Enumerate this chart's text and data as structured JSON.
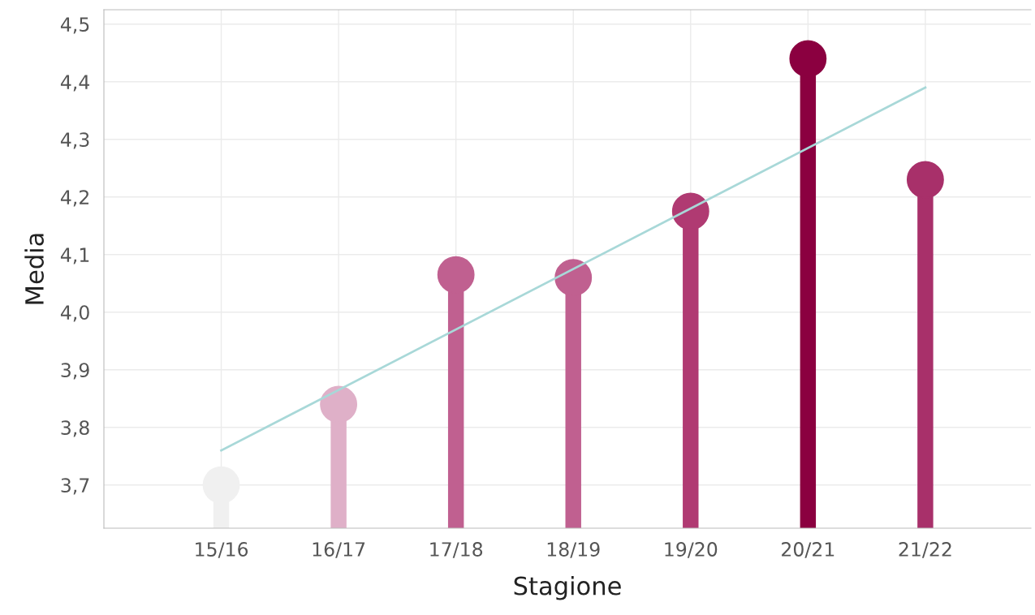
{
  "chart_data": {
    "type": "lollipop",
    "xlabel": "Stagione",
    "ylabel": "Media",
    "categories": [
      "15/16",
      "16/17",
      "17/18",
      "18/19",
      "19/20",
      "20/21",
      "21/22"
    ],
    "values": [
      3.7,
      3.84,
      4.065,
      4.06,
      4.175,
      4.44,
      4.23
    ],
    "colors": [
      "#f0f0f0",
      "#dfb0c8",
      "#c06090",
      "#c06090",
      "#b03a72",
      "#8b0040",
      "#a8306a"
    ],
    "series": [
      {
        "type": "line",
        "marker": "none",
        "color": "#a8d8d8",
        "x": [
          "15/16",
          "21/22"
        ],
        "values": [
          3.76,
          4.39
        ]
      }
    ],
    "ylim": [
      3.625,
      4.525
    ],
    "yticks": [
      {
        "value": 3.7,
        "label": "3,7"
      },
      {
        "value": 3.8,
        "label": "3,8"
      },
      {
        "value": 3.9,
        "label": "3,9"
      },
      {
        "value": 4.0,
        "label": "4,0"
      },
      {
        "value": 4.1,
        "label": "4,1"
      },
      {
        "value": 4.2,
        "label": "4,2"
      },
      {
        "value": 4.3,
        "label": "4,3"
      },
      {
        "value": 4.4,
        "label": "4,4"
      },
      {
        "value": 4.5,
        "label": "4,5"
      }
    ],
    "grid": true,
    "marker": "circle"
  }
}
